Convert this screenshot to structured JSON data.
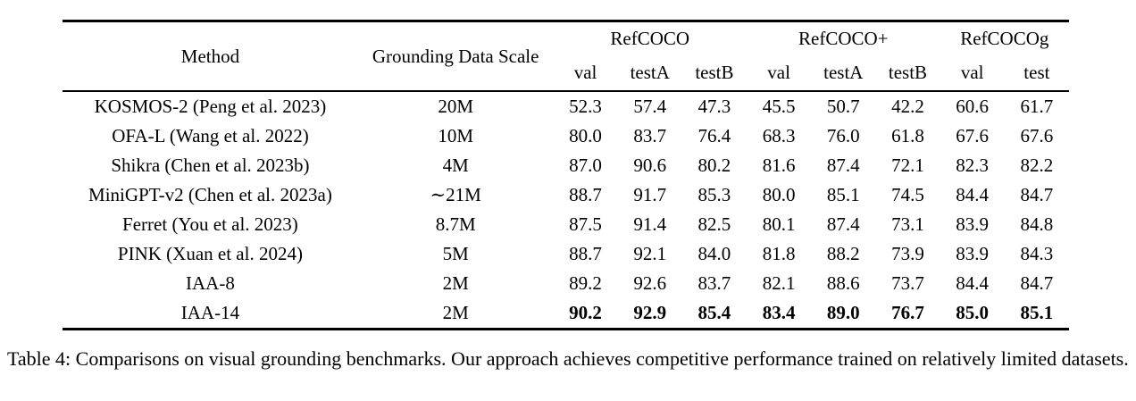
{
  "table": {
    "method_header": "Method",
    "scale_header": "Grounding Data Scale",
    "col_groups": [
      {
        "label": "RefCOCO",
        "subcols": [
          "val",
          "testA",
          "testB"
        ]
      },
      {
        "label": "RefCOCO+",
        "subcols": [
          "val",
          "testA",
          "testB"
        ]
      },
      {
        "label": "RefCOCOg",
        "subcols": [
          "val",
          "test"
        ]
      }
    ],
    "rows": [
      {
        "method": "KOSMOS-2 (Peng et al. 2023)",
        "scale": "20M",
        "bold": false,
        "values": [
          "52.3",
          "57.4",
          "47.3",
          "45.5",
          "50.7",
          "42.2",
          "60.6",
          "61.7"
        ]
      },
      {
        "method": "OFA-L (Wang et al. 2022)",
        "scale": "10M",
        "bold": false,
        "values": [
          "80.0",
          "83.7",
          "76.4",
          "68.3",
          "76.0",
          "61.8",
          "67.6",
          "67.6"
        ]
      },
      {
        "method": "Shikra (Chen et al. 2023b)",
        "scale": "4M",
        "bold": false,
        "values": [
          "87.0",
          "90.6",
          "80.2",
          "81.6",
          "87.4",
          "72.1",
          "82.3",
          "82.2"
        ]
      },
      {
        "method": "MiniGPT-v2 (Chen et al. 2023a)",
        "scale": "∼21M",
        "bold": false,
        "values": [
          "88.7",
          "91.7",
          "85.3",
          "80.0",
          "85.1",
          "74.5",
          "84.4",
          "84.7"
        ]
      },
      {
        "method": "Ferret (You et al. 2023)",
        "scale": "8.7M",
        "bold": false,
        "values": [
          "87.5",
          "91.4",
          "82.5",
          "80.1",
          "87.4",
          "73.1",
          "83.9",
          "84.8"
        ]
      },
      {
        "method": "PINK (Xuan et al. 2024)",
        "scale": "5M",
        "bold": false,
        "values": [
          "88.7",
          "92.1",
          "84.0",
          "81.8",
          "88.2",
          "73.9",
          "83.9",
          "84.3"
        ]
      },
      {
        "method": "IAA-8",
        "scale": "2M",
        "bold": false,
        "values": [
          "89.2",
          "92.6",
          "83.7",
          "82.1",
          "88.6",
          "73.7",
          "84.4",
          "84.7"
        ]
      },
      {
        "method": "IAA-14",
        "scale": "2M",
        "bold": true,
        "values": [
          "90.2",
          "92.9",
          "85.4",
          "83.4",
          "89.0",
          "76.7",
          "85.0",
          "85.1"
        ]
      }
    ]
  },
  "caption": "Table 4: Comparisons on visual grounding benchmarks. Our approach achieves competitive performance trained on relatively limited datasets."
}
